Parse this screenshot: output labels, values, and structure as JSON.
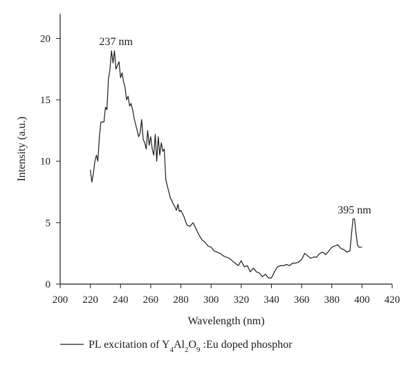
{
  "chart_data": {
    "type": "line",
    "xlabel": "Wavelength (nm)",
    "ylabel": "Intensity (a.u.)",
    "xlim": [
      200,
      420
    ],
    "ylim": [
      0,
      22
    ],
    "x_ticks": [
      200,
      220,
      240,
      260,
      280,
      300,
      320,
      340,
      360,
      380,
      400,
      420
    ],
    "y_ticks": [
      0,
      5,
      10,
      15,
      20
    ],
    "grid": false,
    "legend_position": "bottom",
    "series": [
      {
        "name_parts": [
          "PL excitation of Y",
          "4",
          "Al",
          "2",
          "O",
          "9",
          " :Eu doped phosphor"
        ],
        "color": "#1a1a1a",
        "x": [
          220,
          221,
          222,
          223,
          224,
          225,
          226,
          227,
          228,
          229,
          230,
          231,
          232,
          233,
          234,
          235,
          236,
          237,
          238,
          239,
          240,
          241,
          242,
          243,
          244,
          245,
          246,
          247,
          248,
          249,
          250,
          251,
          252,
          253,
          254,
          255,
          256,
          257,
          258,
          259,
          260,
          261,
          262,
          263,
          264,
          265,
          266,
          267,
          268,
          269,
          270,
          271,
          272,
          273,
          274,
          275,
          276,
          277,
          278,
          279,
          280,
          282,
          284,
          286,
          288,
          290,
          292,
          294,
          296,
          298,
          300,
          302,
          304,
          306,
          308,
          310,
          312,
          314,
          316,
          318,
          320,
          322,
          324,
          326,
          328,
          330,
          332,
          334,
          336,
          338,
          340,
          342,
          344,
          346,
          348,
          350,
          352,
          354,
          356,
          358,
          360,
          362,
          364,
          366,
          368,
          370,
          372,
          374,
          376,
          378,
          380,
          382,
          384,
          386,
          388,
          390,
          392,
          393,
          394,
          395,
          396,
          397,
          398,
          400
        ],
        "y": [
          9.3,
          8.3,
          9.0,
          10.0,
          10.5,
          10.0,
          12.0,
          13.2,
          13.2,
          13.2,
          14.4,
          14.2,
          16.7,
          17.5,
          19.0,
          18.0,
          19.0,
          17.5,
          17.8,
          18.1,
          16.8,
          17.2,
          16.5,
          16.0,
          15.0,
          15.3,
          14.5,
          14.7,
          14.2,
          13.5,
          13.0,
          12.5,
          12.0,
          12.3,
          13.4,
          11.8,
          11.5,
          11.0,
          12.5,
          11.3,
          12.0,
          11.0,
          10.5,
          12.2,
          10.0,
          12.0,
          10.5,
          11.5,
          10.8,
          11.0,
          8.5,
          8.0,
          7.5,
          7.0,
          6.8,
          6.5,
          6.3,
          6.0,
          6.5,
          5.9,
          6.0,
          5.5,
          4.8,
          4.7,
          5.0,
          4.5,
          4.0,
          3.6,
          3.4,
          3.1,
          3.0,
          2.7,
          2.6,
          2.5,
          2.3,
          2.2,
          2.1,
          1.9,
          1.7,
          1.5,
          1.9,
          1.4,
          1.5,
          1.0,
          1.3,
          1.0,
          0.9,
          0.6,
          0.8,
          0.5,
          0.5,
          1.0,
          1.4,
          1.5,
          1.5,
          1.6,
          1.5,
          1.7,
          1.7,
          1.8,
          2.0,
          2.5,
          2.3,
          2.1,
          2.2,
          2.2,
          2.5,
          2.6,
          2.4,
          2.7,
          3.0,
          3.1,
          3.2,
          2.9,
          2.8,
          2.6,
          2.7,
          4.0,
          5.3,
          5.3,
          4.2,
          3.2,
          3.0,
          3.0
        ]
      }
    ],
    "annotations": [
      {
        "text": "237 nm",
        "x": 237,
        "y": 19.0
      },
      {
        "text": "395 nm",
        "x": 395,
        "y": 5.3
      }
    ]
  }
}
